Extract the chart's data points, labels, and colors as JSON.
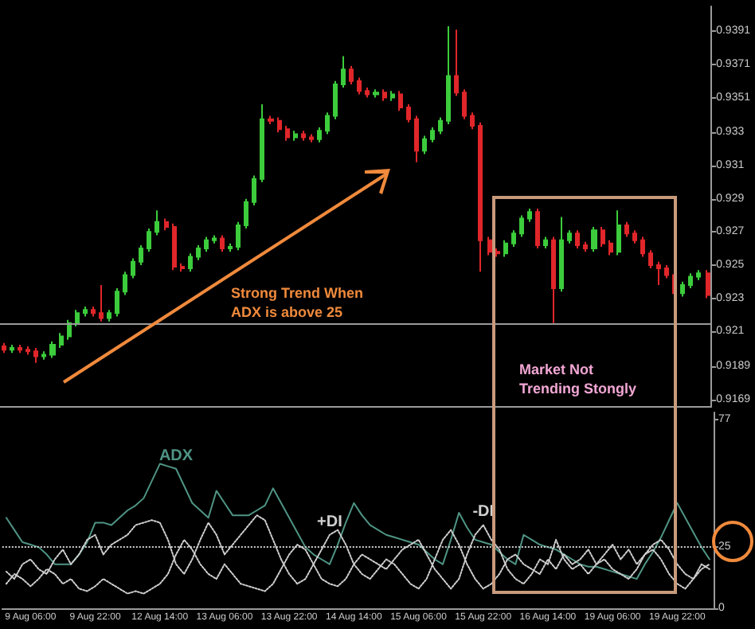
{
  "chart_data": [
    {
      "type": "candlestick",
      "categories": [
        null,
        null,
        null,
        null,
        null,
        null,
        null,
        null,
        null,
        null,
        null,
        null,
        null,
        null,
        null,
        null,
        null,
        null,
        null,
        null,
        null,
        null,
        null,
        null,
        null,
        null,
        null,
        null,
        null,
        null,
        null,
        null,
        null,
        null,
        null,
        null,
        null,
        null,
        null,
        null,
        null,
        null,
        null,
        null,
        null,
        null,
        null,
        null,
        null,
        null,
        null,
        null,
        null,
        null,
        null,
        null,
        null,
        null,
        null,
        null,
        null,
        null,
        null,
        null,
        null,
        null,
        null,
        null,
        null,
        null,
        null,
        null,
        null,
        null,
        null,
        null,
        null,
        null,
        null,
        null,
        null,
        null,
        null,
        null,
        null,
        null,
        null,
        null
      ],
      "ohlc": [
        [
          0.9201,
          0.9203,
          0.9197,
          0.9199
        ],
        [
          0.9199,
          0.9202,
          0.9197,
          0.92
        ],
        [
          0.92,
          0.9202,
          0.9197,
          0.9199
        ],
        [
          0.9199,
          0.9201,
          0.9196,
          0.9198
        ],
        [
          0.9198,
          0.92,
          0.9191,
          0.9195
        ],
        [
          0.9195,
          0.9198,
          0.9193,
          0.9196
        ],
        [
          0.9196,
          0.9204,
          0.9194,
          0.9202
        ],
        [
          0.9202,
          0.9209,
          0.92,
          0.9207
        ],
        [
          0.9207,
          0.9217,
          0.9205,
          0.9215
        ],
        [
          0.9215,
          0.9223,
          0.9213,
          0.9221
        ],
        [
          0.9221,
          0.9225,
          0.9219,
          0.9223
        ],
        [
          0.9223,
          0.9225,
          0.9219,
          0.9221
        ],
        [
          0.9221,
          0.9238,
          0.9216,
          0.9218
        ],
        [
          0.9218,
          0.9223,
          0.9216,
          0.9221
        ],
        [
          0.9221,
          0.9236,
          0.9219,
          0.9234
        ],
        [
          0.9234,
          0.9246,
          0.9232,
          0.9244
        ],
        [
          0.9244,
          0.9254,
          0.9242,
          0.9252
        ],
        [
          0.9252,
          0.9262,
          0.925,
          0.926
        ],
        [
          0.926,
          0.9272,
          0.9258,
          0.927
        ],
        [
          0.927,
          0.9283,
          0.9268,
          0.9276
        ],
        [
          0.9276,
          0.9278,
          0.9271,
          0.9273
        ],
        [
          0.9273,
          0.9275,
          0.9247,
          0.9249
        ],
        [
          0.9249,
          0.9251,
          0.9246,
          0.9248
        ],
        [
          0.9248,
          0.9257,
          0.9246,
          0.9255
        ],
        [
          0.9255,
          0.9262,
          0.9253,
          0.926
        ],
        [
          0.926,
          0.9267,
          0.9258,
          0.9265
        ],
        [
          0.9265,
          0.9268,
          0.9263,
          0.9266
        ],
        [
          0.9266,
          0.9268,
          0.9258,
          0.926
        ],
        [
          0.926,
          0.9263,
          0.9258,
          0.9261
        ],
        [
          0.9261,
          0.9276,
          0.9259,
          0.9274
        ],
        [
          0.9274,
          0.929,
          0.9272,
          0.9288
        ],
        [
          0.9288,
          0.9304,
          0.9286,
          0.9302
        ],
        [
          0.9302,
          0.9347,
          0.93,
          0.9338
        ],
        [
          0.9338,
          0.934,
          0.9335,
          0.9337
        ],
        [
          0.9337,
          0.9339,
          0.933,
          0.9332
        ],
        [
          0.9332,
          0.9334,
          0.9325,
          0.9327
        ],
        [
          0.9327,
          0.9331,
          0.9325,
          0.9329
        ],
        [
          0.9329,
          0.9331,
          0.9325,
          0.9327
        ],
        [
          0.9327,
          0.9329,
          0.9324,
          0.9326
        ],
        [
          0.9326,
          0.9333,
          0.9324,
          0.9331
        ],
        [
          0.9331,
          0.9342,
          0.9329,
          0.934
        ],
        [
          0.934,
          0.9361,
          0.9338,
          0.9359
        ],
        [
          0.9359,
          0.9376,
          0.9357,
          0.9368
        ],
        [
          0.9368,
          0.937,
          0.9359,
          0.9361
        ],
        [
          0.9361,
          0.9363,
          0.9353,
          0.9355
        ],
        [
          0.9355,
          0.9357,
          0.9351,
          0.9353
        ],
        [
          0.9353,
          0.9356,
          0.9351,
          0.9354
        ],
        [
          0.9354,
          0.9356,
          0.9349,
          0.9351
        ],
        [
          0.9351,
          0.9355,
          0.9349,
          0.9353
        ],
        [
          0.9353,
          0.9355,
          0.9343,
          0.9345
        ],
        [
          0.9345,
          0.9347,
          0.9336,
          0.9338
        ],
        [
          0.9338,
          0.934,
          0.9312,
          0.9319
        ],
        [
          0.9319,
          0.9328,
          0.9317,
          0.9326
        ],
        [
          0.9326,
          0.9333,
          0.9324,
          0.9331
        ],
        [
          0.9331,
          0.9339,
          0.9329,
          0.9337
        ],
        [
          0.9337,
          0.9394,
          0.9335,
          0.9364
        ],
        [
          0.9364,
          0.9392,
          0.9352,
          0.9354
        ],
        [
          0.9354,
          0.9356,
          0.9338,
          0.934
        ],
        [
          0.934,
          0.9342,
          0.9332,
          0.9334
        ],
        [
          0.9334,
          0.9336,
          0.9246,
          0.9265
        ],
        [
          0.9265,
          0.9267,
          0.9256,
          0.9258
        ],
        [
          0.9258,
          0.926,
          0.9255,
          0.9257
        ],
        [
          0.9257,
          0.9265,
          0.9255,
          0.9263
        ],
        [
          0.9263,
          0.9271,
          0.9261,
          0.9269
        ],
        [
          0.9269,
          0.928,
          0.9267,
          0.9278
        ],
        [
          0.9278,
          0.9284,
          0.9276,
          0.9282
        ],
        [
          0.9282,
          0.9284,
          0.926,
          0.9262
        ],
        [
          0.9262,
          0.9267,
          0.926,
          0.9265
        ],
        [
          0.9265,
          0.9267,
          0.9215,
          0.9236
        ],
        [
          0.9236,
          0.9279,
          0.9234,
          0.9265
        ],
        [
          0.9265,
          0.9271,
          0.9263,
          0.9269
        ],
        [
          0.9269,
          0.9271,
          0.926,
          0.9262
        ],
        [
          0.9262,
          0.9264,
          0.9258,
          0.926
        ],
        [
          0.926,
          0.9273,
          0.9258,
          0.9271
        ],
        [
          0.9271,
          0.9273,
          0.9261,
          0.9263
        ],
        [
          0.9263,
          0.9265,
          0.9256,
          0.9258
        ],
        [
          0.9258,
          0.9283,
          0.9256,
          0.9274
        ],
        [
          0.9274,
          0.9276,
          0.9267,
          0.9269
        ],
        [
          0.9269,
          0.9271,
          0.9263,
          0.9265
        ],
        [
          0.9265,
          0.9267,
          0.9255,
          0.9257
        ],
        [
          0.9257,
          0.9259,
          0.9248,
          0.925
        ],
        [
          0.925,
          0.9252,
          0.9238,
          0.9248
        ],
        [
          0.9248,
          0.925,
          0.9242,
          0.9244
        ],
        [
          0.9244,
          0.9246,
          0.9231,
          0.9233
        ],
        [
          0.9233,
          0.924,
          0.9231,
          0.9238
        ],
        [
          0.9238,
          0.9245,
          0.9236,
          0.9243
        ],
        [
          0.9243,
          0.9247,
          0.9241,
          0.9245
        ],
        [
          0.9245,
          0.9247,
          0.923,
          0.9232
        ]
      ],
      "colors": [
        "#e0262a",
        "#3ccc3c",
        "#e0262a",
        "#e0262a",
        "#e0262a",
        "#3ccc3c",
        "#3ccc3c",
        "#3ccc3c",
        "#3ccc3c",
        "#3ccc3c",
        "#3ccc3c",
        "#e0262a",
        "#e0262a",
        "#3ccc3c",
        "#3ccc3c",
        "#3ccc3c",
        "#3ccc3c",
        "#3ccc3c",
        "#3ccc3c",
        "#3ccc3c",
        "#e0262a",
        "#e0262a",
        "#e0262a",
        "#3ccc3c",
        "#3ccc3c",
        "#3ccc3c",
        "#3ccc3c",
        "#e0262a",
        "#3ccc3c",
        "#3ccc3c",
        "#3ccc3c",
        "#3ccc3c",
        "#3ccc3c",
        "#e0262a",
        "#e0262a",
        "#e0262a",
        "#3ccc3c",
        "#e0262a",
        "#e0262a",
        "#3ccc3c",
        "#3ccc3c",
        "#3ccc3c",
        "#3ccc3c",
        "#e0262a",
        "#e0262a",
        "#e0262a",
        "#3ccc3c",
        "#e0262a",
        "#3ccc3c",
        "#e0262a",
        "#e0262a",
        "#e0262a",
        "#3ccc3c",
        "#3ccc3c",
        "#3ccc3c",
        "#3ccc3c",
        "#e0262a",
        "#e0262a",
        "#e0262a",
        "#e0262a",
        "#e0262a",
        "#e0262a",
        "#3ccc3c",
        "#3ccc3c",
        "#3ccc3c",
        "#3ccc3c",
        "#e0262a",
        "#3ccc3c",
        "#e0262a",
        "#3ccc3c",
        "#3ccc3c",
        "#e0262a",
        "#e0262a",
        "#3ccc3c",
        "#e0262a",
        "#e0262a",
        "#3ccc3c",
        "#e0262a",
        "#e0262a",
        "#e0262a",
        "#e0262a",
        "#e0262a",
        "#e0262a",
        "#e0262a",
        "#3ccc3c",
        "#3ccc3c",
        "#3ccc3c",
        "#e0262a"
      ],
      "ylim": [
        0.9165,
        0.9406
      ],
      "yticks": [
        0.9169,
        0.9189,
        0.921,
        0.923,
        0.925,
        0.927,
        0.929,
        0.931,
        0.933,
        0.9351,
        0.9371,
        0.9391
      ],
      "ref_lines": [
        {
          "axis": "y",
          "value": 0.9215,
          "color": "#9a9a9a",
          "line_style": "solid"
        }
      ],
      "annotations": [
        "Strong Trend When ADX is above 25",
        "Market Not Trending Stongly"
      ],
      "grid": false,
      "tick_labels": "y"
    },
    {
      "type": "line",
      "categories": [
        null,
        null,
        null,
        "9 Aug 06:00",
        null,
        null,
        null,
        null,
        null,
        null,
        null,
        "9 Aug 22:00",
        null,
        null,
        null,
        null,
        null,
        null,
        null,
        "12 Aug 14:00",
        null,
        null,
        null,
        null,
        null,
        null,
        null,
        "13 Aug 06:00",
        null,
        null,
        null,
        null,
        null,
        null,
        null,
        "13 Aug 22:00",
        null,
        null,
        null,
        null,
        null,
        null,
        null,
        "14 Aug 14:00",
        null,
        null,
        null,
        null,
        null,
        null,
        null,
        "15 Aug 06:00",
        null,
        null,
        null,
        null,
        null,
        null,
        null,
        "15 Aug 22:00",
        null,
        null,
        null,
        null,
        null,
        null,
        null,
        "16 Aug 14:00",
        null,
        null,
        null,
        null,
        null,
        null,
        null,
        "19 Aug 06:00",
        null,
        null,
        null,
        null,
        null,
        null,
        null,
        "19 Aug 22:00",
        null,
        null,
        null,
        null
      ],
      "series": [
        {
          "name": "ADX",
          "color": "#4f9484",
          "line_style": "solid",
          "values": [
            37,
            32,
            27,
            26,
            25,
            22,
            18,
            18,
            18,
            22,
            27,
            35,
            35,
            34,
            37,
            40,
            42,
            45,
            52,
            59,
            58,
            57,
            50,
            43,
            40,
            37,
            48,
            43,
            38,
            38,
            38,
            40,
            42,
            49,
            43,
            37,
            31,
            25,
            22,
            20,
            18,
            26,
            35,
            43,
            38,
            34,
            32,
            30,
            29,
            28,
            27,
            26,
            23,
            20,
            18,
            28,
            39,
            33,
            28,
            27,
            26,
            23,
            20,
            18,
            30,
            28,
            26,
            25,
            24,
            22,
            20,
            18,
            17,
            17,
            16,
            15,
            14,
            13,
            12,
            18,
            23,
            29,
            36,
            43,
            37,
            31,
            25,
            20
          ]
        },
        {
          "name": "+DI",
          "color": "#cfcfcf",
          "line_style": "dotted",
          "values": [
            15,
            12,
            18,
            20,
            16,
            14,
            20,
            24,
            18,
            22,
            28,
            30,
            22,
            26,
            28,
            30,
            34,
            35,
            36,
            35,
            28,
            18,
            14,
            20,
            28,
            35,
            30,
            22,
            26,
            30,
            34,
            38,
            36,
            28,
            20,
            14,
            10,
            12,
            18,
            24,
            30,
            32,
            26,
            18,
            14,
            12,
            16,
            20,
            18,
            14,
            10,
            8,
            12,
            20,
            28,
            32,
            26,
            18,
            12,
            8,
            10,
            14,
            20,
            22,
            18,
            16,
            14,
            20,
            16,
            22,
            18,
            20,
            24,
            18,
            22,
            26,
            20,
            24,
            18,
            22,
            26,
            28,
            24,
            18,
            14,
            12,
            16,
            18
          ]
        },
        {
          "name": "-DI",
          "color": "#cfcfcf",
          "line_style": "dotted",
          "values": [
            10,
            14,
            12,
            9,
            12,
            16,
            14,
            10,
            12,
            8,
            7,
            9,
            12,
            10,
            8,
            6,
            7,
            6,
            8,
            10,
            14,
            22,
            28,
            24,
            18,
            14,
            12,
            18,
            14,
            10,
            9,
            8,
            7,
            10,
            16,
            22,
            26,
            24,
            18,
            12,
            10,
            9,
            12,
            18,
            22,
            20,
            18,
            16,
            20,
            24,
            26,
            28,
            22,
            16,
            12,
            8,
            12,
            22,
            30,
            34,
            28,
            24,
            16,
            12,
            10,
            14,
            20,
            18,
            28,
            20,
            16,
            18,
            14,
            18,
            20,
            16,
            14,
            12,
            16,
            22,
            24,
            20,
            14,
            10,
            8,
            12,
            18,
            16
          ]
        }
      ],
      "ylim": [
        0,
        80
      ],
      "yticks": [
        0,
        25,
        77
      ],
      "ref_lines": [
        {
          "axis": "y",
          "value": 25,
          "color": "#cfcfcf",
          "line_style": "dotted"
        }
      ],
      "grid": false,
      "legend": false,
      "marker": "none"
    }
  ]
}
